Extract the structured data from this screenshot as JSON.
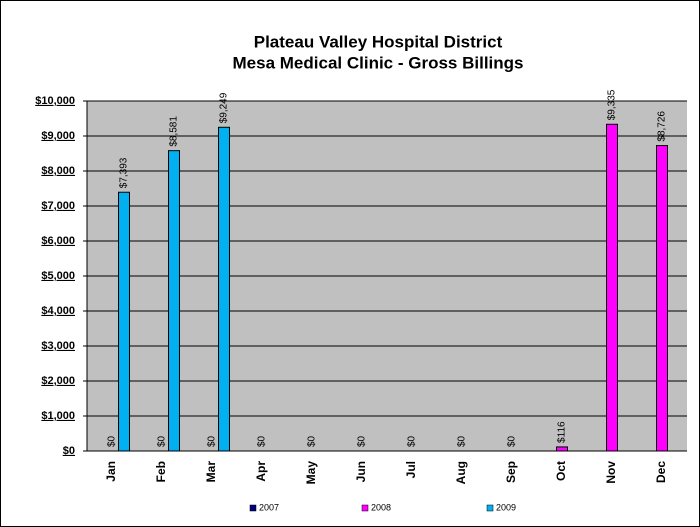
{
  "chart_data": {
    "type": "bar",
    "title": "Plateau Valley Hospital District",
    "subtitle": "Mesa Medical Clinic - Gross Billings",
    "categories": [
      "Jan",
      "Feb",
      "Mar",
      "Apr",
      "May",
      "Jun",
      "Jul",
      "Aug",
      "Sep",
      "Oct",
      "Nov",
      "Dec"
    ],
    "series": [
      {
        "name": "2007",
        "color": "#000080",
        "values": [
          null,
          null,
          null,
          null,
          null,
          null,
          null,
          null,
          null,
          null,
          null,
          null
        ],
        "value_labels": [
          null,
          null,
          null,
          null,
          null,
          null,
          null,
          null,
          null,
          null,
          null,
          null
        ]
      },
      {
        "name": "2008",
        "color": "#ff00ff",
        "values": [
          0,
          0,
          0,
          0,
          0,
          0,
          0,
          0,
          0,
          116,
          9335,
          8726
        ],
        "value_labels": [
          "$0",
          "$0",
          "$0",
          "$0",
          "$0",
          "$0",
          "$0",
          "$0",
          "$0",
          "$116",
          "$9,335",
          "$8,726"
        ]
      },
      {
        "name": "2009",
        "color": "#00b0f0",
        "values": [
          7393,
          8581,
          9249,
          null,
          null,
          null,
          null,
          null,
          null,
          null,
          null,
          null
        ],
        "value_labels": [
          "$7,393",
          "$8,581",
          "$9,249",
          null,
          null,
          null,
          null,
          null,
          null,
          null,
          null,
          null
        ]
      }
    ],
    "ylim": [
      0,
      10000
    ],
    "yticks": [
      {
        "value": 0,
        "label": "$0"
      },
      {
        "value": 1000,
        "label": "$1,000"
      },
      {
        "value": 2000,
        "label": "$2,000"
      },
      {
        "value": 3000,
        "label": "$3,000"
      },
      {
        "value": 4000,
        "label": "$4,000"
      },
      {
        "value": 5000,
        "label": "$5,000"
      },
      {
        "value": 6000,
        "label": "$6,000"
      },
      {
        "value": 7000,
        "label": "$7,000"
      },
      {
        "value": 8000,
        "label": "$8,000"
      },
      {
        "value": 9000,
        "label": "$9,000"
      },
      {
        "value": 10000,
        "label": "$10,000"
      }
    ],
    "grid": true,
    "legend": "bottom"
  }
}
